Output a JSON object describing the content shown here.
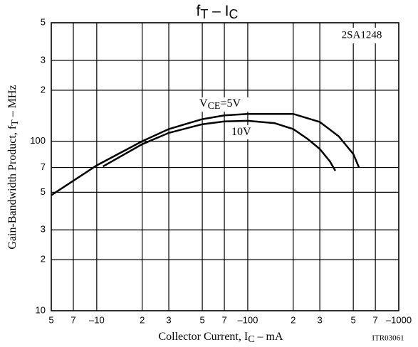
{
  "chart_data": {
    "type": "line",
    "title": [
      {
        "text": "f"
      },
      {
        "text": "T",
        "sub": true
      },
      {
        "text": "  –  I"
      },
      {
        "text": "C",
        "sub": true
      }
    ],
    "x_label": [
      {
        "text": "Collector Current, I"
      },
      {
        "text": "C",
        "sub": true
      },
      {
        "text": "  –  mA"
      }
    ],
    "y_label": [
      {
        "text": "Gain-Bandwidth Product, f"
      },
      {
        "text": "T",
        "sub": true
      },
      {
        "text": "  –  MHz"
      }
    ],
    "part_number": "2SA1248",
    "figure_code": "ITR03061",
    "x_log": true,
    "y_log": true,
    "grid": true,
    "xlim": [
      -5,
      -1000
    ],
    "ylim": [
      10,
      500
    ],
    "xticks": [
      {
        "value": -5,
        "label": "5"
      },
      {
        "value": -7,
        "label": "7"
      },
      {
        "value": -10,
        "label": "–10"
      },
      {
        "value": -20,
        "label": "2"
      },
      {
        "value": -30,
        "label": "3"
      },
      {
        "value": -50,
        "label": "5"
      },
      {
        "value": -70,
        "label": "7"
      },
      {
        "value": -100,
        "label": "–100"
      },
      {
        "value": -200,
        "label": "2"
      },
      {
        "value": -300,
        "label": "3"
      },
      {
        "value": -500,
        "label": "5"
      },
      {
        "value": -700,
        "label": "7"
      },
      {
        "value": -1000,
        "label": "–1000"
      }
    ],
    "yticks": [
      10,
      {
        "value": 20,
        "label": "2"
      },
      {
        "value": 30,
        "label": "3"
      },
      {
        "value": 50,
        "label": "5"
      },
      {
        "value": 70,
        "label": "7"
      },
      100,
      {
        "value": 200,
        "label": "2"
      },
      {
        "value": 300,
        "label": "3"
      },
      {
        "value": 500,
        "label": "5"
      }
    ],
    "series": [
      {
        "label": [
          {
            "text": "V"
          },
          {
            "text": "CE",
            "sub": true
          },
          {
            "text": "=5V"
          }
        ],
        "color": "#000000",
        "x": [
          -5,
          -10,
          -20,
          -30,
          -50,
          -70,
          -100,
          -200,
          -300,
          -400,
          -500,
          -545
        ],
        "values": [
          48,
          72,
          100,
          118,
          135,
          142,
          145,
          145,
          130,
          107,
          84,
          70
        ]
      },
      {
        "label": [
          {
            "text": "10V"
          }
        ],
        "color": "#000000",
        "x": [
          -11,
          -20,
          -30,
          -50,
          -70,
          -100,
          -150,
          -200,
          -250,
          -300,
          -350,
          -380
        ],
        "values": [
          71,
          96,
          112,
          126,
          131,
          132,
          128,
          118,
          103,
          90,
          76,
          67
        ]
      }
    ]
  }
}
